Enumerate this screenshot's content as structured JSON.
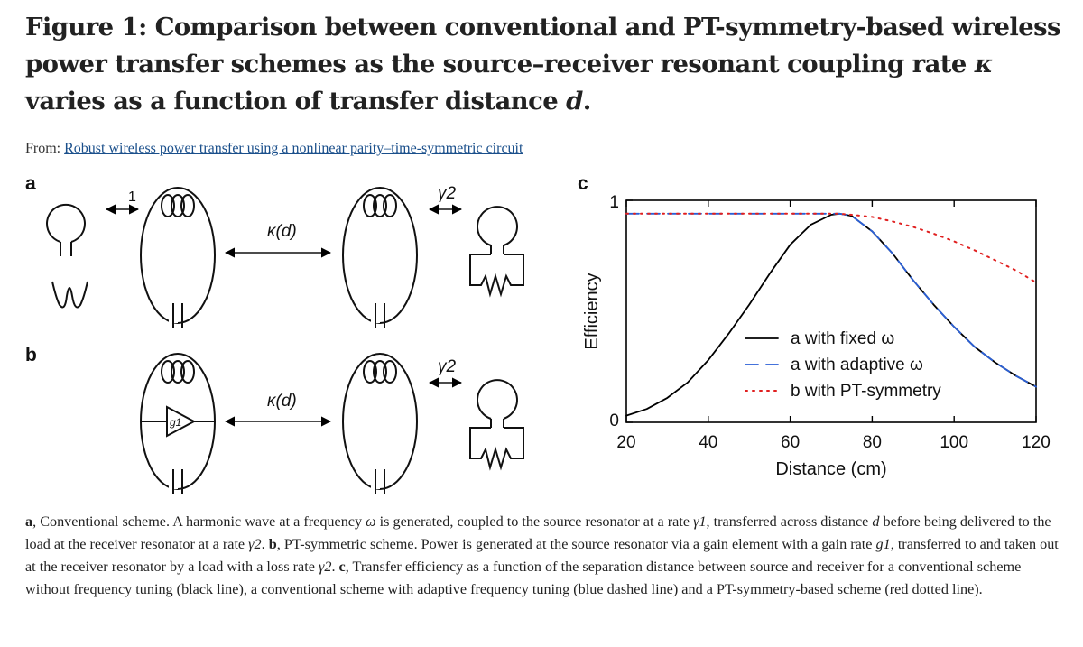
{
  "title": {
    "prefix": "Figure 1:",
    "text": "Comparison between conventional and PT-symmetry-based wireless power transfer schemes as the source–receiver resonant coupling rate",
    "kappa": "κ",
    "mid": "varies as a function of transfer distance",
    "d": "d",
    "end": "."
  },
  "source": {
    "from_label": "From:",
    "article_link": "Robust wireless power transfer using a nonlinear parity–time-symmetric circuit"
  },
  "panel_a": {
    "label": "a",
    "coupling_source": "1",
    "coupling_kappa": "κ(d)",
    "coupling_receiver": "γ2"
  },
  "panel_b": {
    "label": "b",
    "gain_element": "g1",
    "coupling_kappa": "κ(d)",
    "coupling_receiver": "γ2"
  },
  "chart_data": {
    "type": "line",
    "panel_label": "c",
    "title": "",
    "xlabel": "Distance (cm)",
    "ylabel": "Efficiency",
    "xlim": [
      20,
      120
    ],
    "ylim": [
      0,
      1
    ],
    "x_ticks": [
      "20",
      "40",
      "60",
      "80",
      "100",
      "120"
    ],
    "y_ticks": [
      "0",
      "1"
    ],
    "legend_position": "center-right",
    "series": [
      {
        "name": "a with fixed ω",
        "color": "#000000",
        "style": "solid",
        "x": [
          20,
          25,
          30,
          35,
          40,
          45,
          50,
          55,
          60,
          65,
          70,
          72,
          75,
          80,
          85,
          90,
          95,
          100,
          105,
          110,
          115,
          120
        ],
        "y": [
          0.03,
          0.06,
          0.11,
          0.18,
          0.28,
          0.4,
          0.53,
          0.67,
          0.8,
          0.89,
          0.935,
          0.94,
          0.93,
          0.86,
          0.76,
          0.64,
          0.53,
          0.43,
          0.34,
          0.27,
          0.21,
          0.16
        ]
      },
      {
        "name": "a with adaptive ω",
        "color": "#2a5fd6",
        "style": "dashed",
        "x": [
          20,
          30,
          40,
          50,
          60,
          65,
          70,
          72,
          75,
          80,
          85,
          90,
          95,
          100,
          105,
          110,
          115,
          120
        ],
        "y": [
          0.94,
          0.94,
          0.94,
          0.94,
          0.94,
          0.94,
          0.94,
          0.94,
          0.93,
          0.86,
          0.76,
          0.64,
          0.53,
          0.43,
          0.34,
          0.27,
          0.21,
          0.16
        ]
      },
      {
        "name": "b with PT-symmetry",
        "color": "#e02020",
        "style": "dotted",
        "x": [
          20,
          30,
          40,
          50,
          60,
          70,
          72,
          75,
          80,
          85,
          90,
          95,
          100,
          105,
          110,
          115,
          120
        ],
        "y": [
          0.94,
          0.94,
          0.94,
          0.94,
          0.94,
          0.94,
          0.94,
          0.935,
          0.925,
          0.905,
          0.88,
          0.85,
          0.815,
          0.775,
          0.73,
          0.685,
          0.63
        ]
      }
    ]
  },
  "caption": {
    "a_label": "a",
    "a_text1": ", Conventional scheme. A harmonic wave at a frequency",
    "omega": "ω",
    "a_text2": "is generated, coupled to the source resonator at a rate",
    "gamma1": "γ1",
    "a_text3": ", transferred across distance",
    "d": "d",
    "a_text4": "before being delivered to the load at the receiver resonator at a rate",
    "gamma2": "γ2",
    "b_label": "b",
    "b_text1": ", PT-symmetric scheme. Power is generated at the source resonator via a gain element with a gain rate",
    "g1": "g1",
    "b_text2": ", transferred to and taken out at the receiver resonator by a load with a loss rate",
    "gamma2b": "γ2",
    "c_label": "c",
    "c_text": ", Transfer efficiency as a function of the separation distance between source and receiver for a conventional scheme without frequency tuning (black line), a conventional scheme with adaptive frequency tuning (blue dashed line) and a PT-symmetry-based scheme (red dotted line)."
  }
}
